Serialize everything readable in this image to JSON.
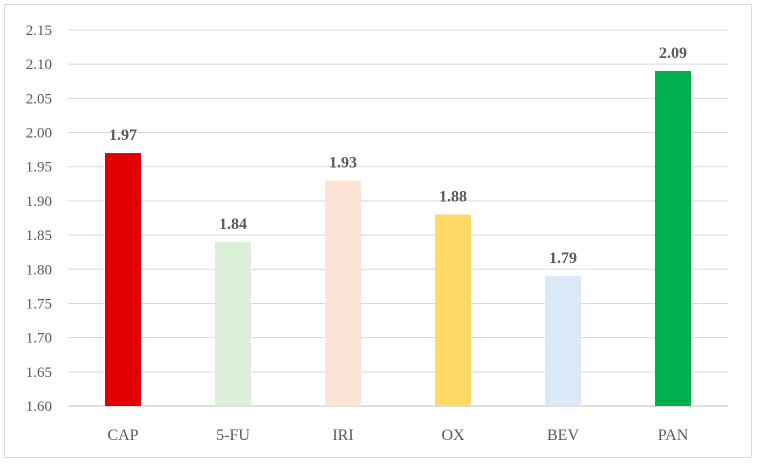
{
  "chart_data": {
    "type": "bar",
    "categories": [
      "CAP",
      "5-FU",
      "IRI",
      "OX",
      "BEV",
      "PAN"
    ],
    "values": [
      1.97,
      1.84,
      1.93,
      1.88,
      1.79,
      2.09
    ],
    "data_labels": [
      "1.97",
      "1.84",
      "1.93",
      "1.88",
      "1.79",
      "2.09"
    ],
    "bar_colors": [
      "#e00000",
      "#dcefd8",
      "#fde4d6",
      "#ffd966",
      "#dae9f7",
      "#00b050"
    ],
    "ylim": [
      1.6,
      2.15
    ],
    "y_ticks": [
      "1.60",
      "1.65",
      "1.70",
      "1.75",
      "1.80",
      "1.85",
      "1.90",
      "1.95",
      "2.00",
      "2.05",
      "2.10",
      "2.15"
    ],
    "grid": true,
    "title": "",
    "xlabel": "",
    "ylabel": ""
  }
}
